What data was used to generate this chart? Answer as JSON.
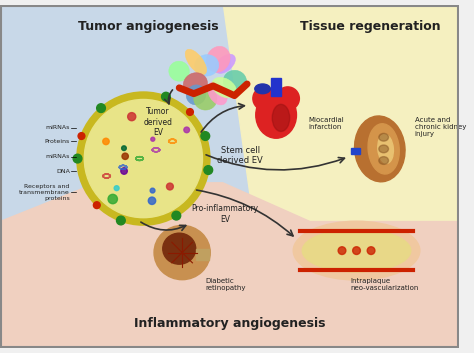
{
  "fig_width": 4.74,
  "fig_height": 3.53,
  "dpi": 100,
  "bg_color": "#f0f0f0",
  "region_blue": "#c8d8e8",
  "region_yellow": "#f5f0c0",
  "region_pink": "#f0d0c0",
  "title_tumor": "Tumor angiogenesis",
  "title_tissue": "Tissue regeneration",
  "title_inflammatory": "Inflammatory angiogenesis",
  "label_tumor_ev": "Tumor\nderived\nEV",
  "label_stem_ev": "Stem cell\nderived EV",
  "label_pro_ev": "Pro-inflammatory\nEV",
  "label_mirna": "miRNAs",
  "label_proteins": "Proteins",
  "label_mirna2": "miRNAs",
  "label_dna": "DNA",
  "label_receptors": "Receptors and\ntransmembrane\nproteins",
  "label_myocardial": "Miocardial\ninfarction",
  "label_kidney": "Acute and\nchronic kidney\ninjury",
  "label_diabetic": "Diabetic\nretinopathy",
  "label_intraplaque": "Intraplaque\nneo-vascularization",
  "border_color": "#888888",
  "text_color": "#222222"
}
